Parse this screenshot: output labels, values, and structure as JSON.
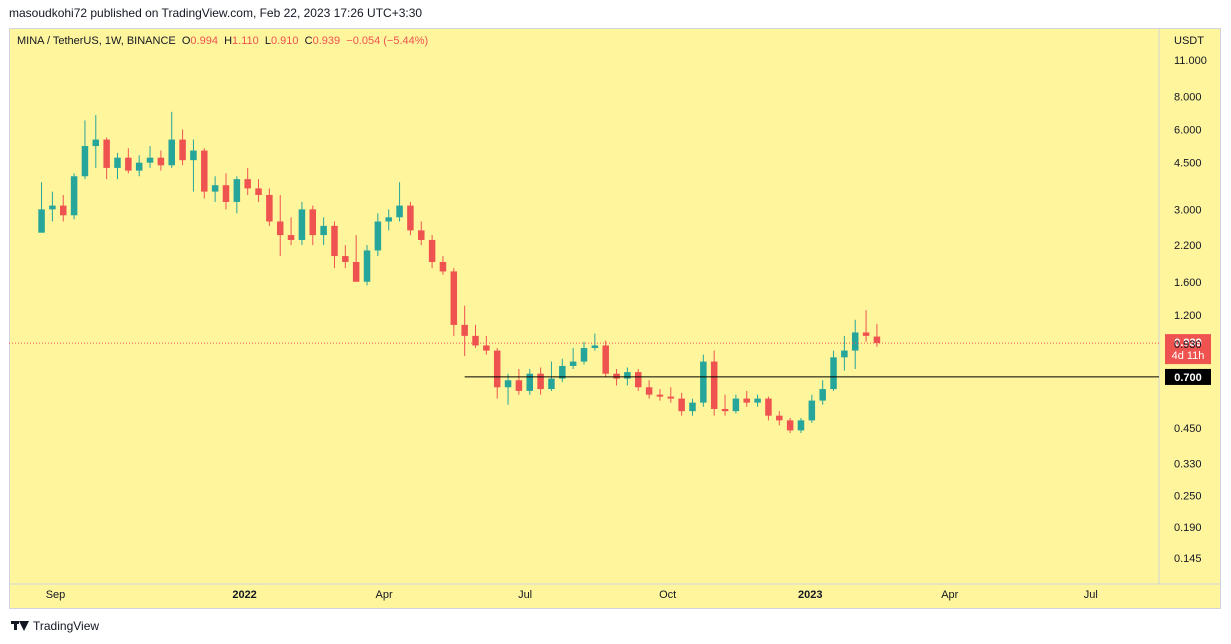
{
  "header": {
    "published_text": "masoudkohi72 published on TradingView.com, Feb 22, 2023 17:26 UTC+3:30"
  },
  "legend": {
    "symbol": "MINA / TetherUS, 1W, BINANCE",
    "o_label": "O",
    "o_value": "0.994",
    "h_label": "H",
    "h_value": "1.110",
    "l_label": "L",
    "l_value": "0.910",
    "c_label": "C",
    "c_value": "0.939",
    "change": "−0.054 (−5.44%)"
  },
  "footer": {
    "brand": "TradingView"
  },
  "colors": {
    "background": "#fff59d",
    "up": "#26a69a",
    "down": "#ef5350",
    "line": "#000000"
  },
  "chart_data": {
    "type": "candlestick",
    "title": "MINA / TetherUS, 1W, BINANCE",
    "y_unit": "USDT",
    "y_scale": "log",
    "ylim": [
      0.12,
      14
    ],
    "y_ticks": [
      "11.000",
      "8.000",
      "6.000",
      "4.500",
      "3.000",
      "2.200",
      "1.600",
      "1.200",
      "0.930",
      "0.450",
      "0.330",
      "0.250",
      "0.190",
      "0.145"
    ],
    "x_range": [
      "2021-08-02",
      "2023-08-14"
    ],
    "x_ticks": [
      {
        "label": "Sep",
        "date": "2021-09-01"
      },
      {
        "label": "2022",
        "date": "2022-01-01",
        "bold": true
      },
      {
        "label": "Apr",
        "date": "2022-04-01"
      },
      {
        "label": "Jul",
        "date": "2022-07-01"
      },
      {
        "label": "Oct",
        "date": "2022-10-01"
      },
      {
        "label": "2023",
        "date": "2023-01-01",
        "bold": true
      },
      {
        "label": "Apr",
        "date": "2023-04-01"
      },
      {
        "label": "Jul",
        "date": "2023-07-01"
      }
    ],
    "last_price": {
      "value": 0.939,
      "label": "0.939",
      "countdown": "4d 11h"
    },
    "horizontal_line": {
      "value": 0.7,
      "label": "0.700",
      "from": "2022-05-23"
    },
    "candles": [
      {
        "d": "2021-08-23",
        "o": 2.45,
        "h": 3.8,
        "l": 2.45,
        "c": 3.0
      },
      {
        "d": "2021-08-30",
        "o": 3.0,
        "h": 3.5,
        "l": 2.7,
        "c": 3.1
      },
      {
        "d": "2021-09-06",
        "o": 3.1,
        "h": 3.4,
        "l": 2.7,
        "c": 2.85
      },
      {
        "d": "2021-09-13",
        "o": 2.85,
        "h": 4.1,
        "l": 2.75,
        "c": 4.0
      },
      {
        "d": "2021-09-20",
        "o": 4.0,
        "h": 6.5,
        "l": 3.9,
        "c": 5.2
      },
      {
        "d": "2021-09-27",
        "o": 5.2,
        "h": 6.8,
        "l": 4.3,
        "c": 5.5
      },
      {
        "d": "2021-10-04",
        "o": 5.5,
        "h": 5.6,
        "l": 3.9,
        "c": 4.3
      },
      {
        "d": "2021-10-11",
        "o": 4.3,
        "h": 4.9,
        "l": 3.9,
        "c": 4.7
      },
      {
        "d": "2021-10-18",
        "o": 4.7,
        "h": 5.1,
        "l": 4.1,
        "c": 4.2
      },
      {
        "d": "2021-10-25",
        "o": 4.2,
        "h": 4.8,
        "l": 4.0,
        "c": 4.5
      },
      {
        "d": "2021-11-01",
        "o": 4.5,
        "h": 5.2,
        "l": 4.3,
        "c": 4.7
      },
      {
        "d": "2021-11-08",
        "o": 4.7,
        "h": 5.0,
        "l": 4.2,
        "c": 4.4
      },
      {
        "d": "2021-11-15",
        "o": 4.4,
        "h": 7.0,
        "l": 4.3,
        "c": 5.5
      },
      {
        "d": "2021-11-22",
        "o": 5.5,
        "h": 6.0,
        "l": 4.4,
        "c": 4.6
      },
      {
        "d": "2021-11-29",
        "o": 4.6,
        "h": 5.5,
        "l": 3.5,
        "c": 5.0
      },
      {
        "d": "2021-12-06",
        "o": 5.0,
        "h": 5.1,
        "l": 3.3,
        "c": 3.5
      },
      {
        "d": "2021-12-13",
        "o": 3.5,
        "h": 4.0,
        "l": 3.2,
        "c": 3.7
      },
      {
        "d": "2021-12-20",
        "o": 3.7,
        "h": 4.1,
        "l": 3.0,
        "c": 3.2
      },
      {
        "d": "2021-12-27",
        "o": 3.2,
        "h": 4.0,
        "l": 2.9,
        "c": 3.9
      },
      {
        "d": "2022-01-03",
        "o": 3.9,
        "h": 4.3,
        "l": 3.4,
        "c": 3.6
      },
      {
        "d": "2022-01-10",
        "o": 3.6,
        "h": 3.9,
        "l": 3.2,
        "c": 3.4
      },
      {
        "d": "2022-01-17",
        "o": 3.4,
        "h": 3.6,
        "l": 2.6,
        "c": 2.7
      },
      {
        "d": "2022-01-24",
        "o": 2.7,
        "h": 3.4,
        "l": 2.0,
        "c": 2.4
      },
      {
        "d": "2022-01-31",
        "o": 2.4,
        "h": 2.8,
        "l": 2.2,
        "c": 2.3
      },
      {
        "d": "2022-02-07",
        "o": 2.3,
        "h": 3.2,
        "l": 2.2,
        "c": 3.0
      },
      {
        "d": "2022-02-14",
        "o": 3.0,
        "h": 3.1,
        "l": 2.2,
        "c": 2.4
      },
      {
        "d": "2022-02-21",
        "o": 2.4,
        "h": 2.8,
        "l": 2.2,
        "c": 2.6
      },
      {
        "d": "2022-02-28",
        "o": 2.6,
        "h": 2.7,
        "l": 1.8,
        "c": 2.0
      },
      {
        "d": "2022-03-07",
        "o": 2.0,
        "h": 2.2,
        "l": 1.8,
        "c": 1.9
      },
      {
        "d": "2022-03-14",
        "o": 1.9,
        "h": 2.4,
        "l": 1.6,
        "c": 1.6
      },
      {
        "d": "2022-03-21",
        "o": 1.6,
        "h": 2.2,
        "l": 1.55,
        "c": 2.1
      },
      {
        "d": "2022-03-28",
        "o": 2.1,
        "h": 2.9,
        "l": 2.0,
        "c": 2.7
      },
      {
        "d": "2022-04-04",
        "o": 2.7,
        "h": 3.0,
        "l": 2.5,
        "c": 2.8
      },
      {
        "d": "2022-04-11",
        "o": 2.8,
        "h": 3.8,
        "l": 2.7,
        "c": 3.1
      },
      {
        "d": "2022-04-18",
        "o": 3.1,
        "h": 3.2,
        "l": 2.4,
        "c": 2.5
      },
      {
        "d": "2022-04-25",
        "o": 2.5,
        "h": 2.7,
        "l": 2.2,
        "c": 2.3
      },
      {
        "d": "2022-05-02",
        "o": 2.3,
        "h": 2.4,
        "l": 1.8,
        "c": 1.9
      },
      {
        "d": "2022-05-09",
        "o": 1.9,
        "h": 2.0,
        "l": 1.7,
        "c": 1.75
      },
      {
        "d": "2022-05-16",
        "o": 1.75,
        "h": 1.8,
        "l": 1.0,
        "c": 1.1
      },
      {
        "d": "2022-05-23",
        "o": 1.1,
        "h": 1.3,
        "l": 0.84,
        "c": 1.0
      },
      {
        "d": "2022-05-30",
        "o": 1.0,
        "h": 1.1,
        "l": 0.9,
        "c": 0.92
      },
      {
        "d": "2022-06-06",
        "o": 0.92,
        "h": 1.0,
        "l": 0.85,
        "c": 0.88
      },
      {
        "d": "2022-06-13",
        "o": 0.88,
        "h": 0.9,
        "l": 0.58,
        "c": 0.64
      },
      {
        "d": "2022-06-20",
        "o": 0.64,
        "h": 0.72,
        "l": 0.55,
        "c": 0.68
      },
      {
        "d": "2022-06-27",
        "o": 0.68,
        "h": 0.75,
        "l": 0.6,
        "c": 0.62
      },
      {
        "d": "2022-07-04",
        "o": 0.62,
        "h": 0.75,
        "l": 0.6,
        "c": 0.72
      },
      {
        "d": "2022-07-11",
        "o": 0.72,
        "h": 0.76,
        "l": 0.6,
        "c": 0.63
      },
      {
        "d": "2022-07-18",
        "o": 0.63,
        "h": 0.8,
        "l": 0.62,
        "c": 0.69
      },
      {
        "d": "2022-07-25",
        "o": 0.69,
        "h": 0.82,
        "l": 0.67,
        "c": 0.77
      },
      {
        "d": "2022-08-01",
        "o": 0.77,
        "h": 0.9,
        "l": 0.75,
        "c": 0.8
      },
      {
        "d": "2022-08-08",
        "o": 0.8,
        "h": 0.95,
        "l": 0.78,
        "c": 0.9
      },
      {
        "d": "2022-08-15",
        "o": 0.9,
        "h": 1.02,
        "l": 0.88,
        "c": 0.92
      },
      {
        "d": "2022-08-22",
        "o": 0.92,
        "h": 0.96,
        "l": 0.7,
        "c": 0.72
      },
      {
        "d": "2022-08-29",
        "o": 0.72,
        "h": 0.75,
        "l": 0.65,
        "c": 0.69
      },
      {
        "d": "2022-09-05",
        "o": 0.69,
        "h": 0.76,
        "l": 0.65,
        "c": 0.73
      },
      {
        "d": "2022-09-12",
        "o": 0.73,
        "h": 0.75,
        "l": 0.62,
        "c": 0.64
      },
      {
        "d": "2022-09-19",
        "o": 0.64,
        "h": 0.68,
        "l": 0.58,
        "c": 0.6
      },
      {
        "d": "2022-09-26",
        "o": 0.6,
        "h": 0.63,
        "l": 0.57,
        "c": 0.59
      },
      {
        "d": "2022-10-03",
        "o": 0.59,
        "h": 0.64,
        "l": 0.56,
        "c": 0.58
      },
      {
        "d": "2022-10-10",
        "o": 0.58,
        "h": 0.61,
        "l": 0.5,
        "c": 0.52
      },
      {
        "d": "2022-10-17",
        "o": 0.52,
        "h": 0.58,
        "l": 0.5,
        "c": 0.56
      },
      {
        "d": "2022-10-24",
        "o": 0.56,
        "h": 0.85,
        "l": 0.54,
        "c": 0.8
      },
      {
        "d": "2022-10-31",
        "o": 0.8,
        "h": 0.88,
        "l": 0.5,
        "c": 0.53
      },
      {
        "d": "2022-11-07",
        "o": 0.53,
        "h": 0.6,
        "l": 0.5,
        "c": 0.52
      },
      {
        "d": "2022-11-14",
        "o": 0.52,
        "h": 0.6,
        "l": 0.51,
        "c": 0.58
      },
      {
        "d": "2022-11-21",
        "o": 0.58,
        "h": 0.62,
        "l": 0.54,
        "c": 0.56
      },
      {
        "d": "2022-11-28",
        "o": 0.56,
        "h": 0.6,
        "l": 0.54,
        "c": 0.58
      },
      {
        "d": "2022-12-05",
        "o": 0.58,
        "h": 0.59,
        "l": 0.48,
        "c": 0.5
      },
      {
        "d": "2022-12-12",
        "o": 0.5,
        "h": 0.52,
        "l": 0.46,
        "c": 0.48
      },
      {
        "d": "2022-12-19",
        "o": 0.48,
        "h": 0.49,
        "l": 0.43,
        "c": 0.44
      },
      {
        "d": "2022-12-26",
        "o": 0.44,
        "h": 0.49,
        "l": 0.43,
        "c": 0.48
      },
      {
        "d": "2023-01-02",
        "o": 0.48,
        "h": 0.6,
        "l": 0.47,
        "c": 0.57
      },
      {
        "d": "2023-01-09",
        "o": 0.57,
        "h": 0.68,
        "l": 0.55,
        "c": 0.63
      },
      {
        "d": "2023-01-16",
        "o": 0.63,
        "h": 0.88,
        "l": 0.62,
        "c": 0.83
      },
      {
        "d": "2023-01-23",
        "o": 0.83,
        "h": 1.0,
        "l": 0.74,
        "c": 0.88
      },
      {
        "d": "2023-01-30",
        "o": 0.88,
        "h": 1.15,
        "l": 0.75,
        "c": 1.03
      },
      {
        "d": "2023-02-06",
        "o": 1.03,
        "h": 1.25,
        "l": 0.95,
        "c": 1.0
      },
      {
        "d": "2023-02-13",
        "o": 0.994,
        "h": 1.11,
        "l": 0.91,
        "c": 0.939
      }
    ]
  }
}
